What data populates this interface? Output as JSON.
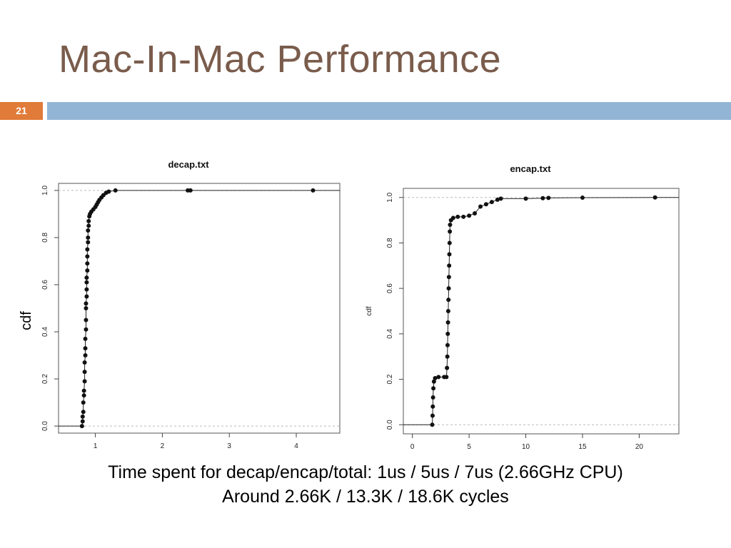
{
  "slide": {
    "title": "Mac-In-Mac Performance",
    "number": "21",
    "caption_line1": "Time spent for decap/encap/total: 1us / 5us / 7us (2.66GHz CPU)",
    "caption_line2": "Around 2.66K / 13.3K / 18.6K cycles",
    "side_ylabel": "cdf"
  },
  "colors": {
    "title": "#7a5c4c",
    "accent_orange": "#e07b39",
    "accent_blue": "#93b5d5"
  },
  "chart_data": [
    {
      "type": "scatter",
      "title": "decap.txt",
      "xlabel": "",
      "ylabel": "",
      "xlim": [
        0.45,
        4.65
      ],
      "ylim": [
        -0.03,
        1.03
      ],
      "xticks": [
        1,
        2,
        3,
        4
      ],
      "yticks": [
        0.0,
        0.2,
        0.4,
        0.6,
        0.8,
        1.0
      ],
      "grid": false,
      "series": [
        {
          "points": [
            [
              0.8,
              0.0
            ],
            [
              0.81,
              0.02
            ],
            [
              0.81,
              0.04
            ],
            [
              0.82,
              0.06
            ],
            [
              0.82,
              0.1
            ],
            [
              0.83,
              0.13
            ],
            [
              0.83,
              0.15
            ],
            [
              0.84,
              0.19
            ],
            [
              0.84,
              0.23
            ],
            [
              0.84,
              0.27
            ],
            [
              0.85,
              0.3
            ],
            [
              0.85,
              0.33
            ],
            [
              0.85,
              0.37
            ],
            [
              0.86,
              0.41
            ],
            [
              0.86,
              0.45
            ],
            [
              0.86,
              0.5
            ],
            [
              0.86,
              0.52
            ],
            [
              0.87,
              0.55
            ],
            [
              0.87,
              0.58
            ],
            [
              0.87,
              0.61
            ],
            [
              0.87,
              0.63
            ],
            [
              0.88,
              0.66
            ],
            [
              0.88,
              0.69
            ],
            [
              0.88,
              0.72
            ],
            [
              0.88,
              0.75
            ],
            [
              0.89,
              0.78
            ],
            [
              0.89,
              0.8
            ],
            [
              0.89,
              0.83
            ],
            [
              0.9,
              0.85
            ],
            [
              0.9,
              0.87
            ],
            [
              0.91,
              0.89
            ],
            [
              0.92,
              0.9
            ],
            [
              0.94,
              0.91
            ],
            [
              0.97,
              0.92
            ],
            [
              1.0,
              0.93
            ],
            [
              1.02,
              0.94
            ],
            [
              1.04,
              0.95
            ],
            [
              1.06,
              0.96
            ],
            [
              1.09,
              0.97
            ],
            [
              1.12,
              0.98
            ],
            [
              1.16,
              0.99
            ],
            [
              1.2,
              0.995
            ],
            [
              1.3,
              1.0
            ],
            [
              2.38,
              1.0
            ],
            [
              2.42,
              1.0
            ],
            [
              4.25,
              1.0
            ]
          ]
        }
      ]
    },
    {
      "type": "scatter",
      "title": "encap.txt",
      "xlabel": "",
      "ylabel": "cdf",
      "xlim": [
        -0.8,
        23.5
      ],
      "ylim": [
        -0.04,
        1.04
      ],
      "xticks": [
        0,
        5,
        10,
        15,
        20
      ],
      "yticks": [
        0.0,
        0.2,
        0.4,
        0.6,
        0.8,
        1.0
      ],
      "grid": false,
      "series": [
        {
          "points": [
            [
              1.75,
              0.0
            ],
            [
              1.78,
              0.04
            ],
            [
              1.8,
              0.08
            ],
            [
              1.82,
              0.12
            ],
            [
              1.85,
              0.16
            ],
            [
              1.9,
              0.19
            ],
            [
              2.0,
              0.205
            ],
            [
              2.3,
              0.21
            ],
            [
              2.8,
              0.21
            ],
            [
              3.0,
              0.21
            ],
            [
              3.05,
              0.25
            ],
            [
              3.08,
              0.3
            ],
            [
              3.1,
              0.35
            ],
            [
              3.12,
              0.4
            ],
            [
              3.14,
              0.45
            ],
            [
              3.16,
              0.5
            ],
            [
              3.18,
              0.55
            ],
            [
              3.2,
              0.6
            ],
            [
              3.22,
              0.65
            ],
            [
              3.24,
              0.7
            ],
            [
              3.26,
              0.75
            ],
            [
              3.28,
              0.8
            ],
            [
              3.3,
              0.85
            ],
            [
              3.32,
              0.88
            ],
            [
              3.4,
              0.9
            ],
            [
              3.6,
              0.91
            ],
            [
              4.0,
              0.915
            ],
            [
              4.5,
              0.915
            ],
            [
              5.0,
              0.92
            ],
            [
              5.5,
              0.93
            ],
            [
              6.0,
              0.96
            ],
            [
              6.5,
              0.97
            ],
            [
              7.0,
              0.98
            ],
            [
              7.5,
              0.99
            ],
            [
              7.8,
              0.995
            ],
            [
              10.0,
              0.995
            ],
            [
              11.5,
              0.997
            ],
            [
              12.0,
              0.998
            ],
            [
              15.0,
              0.999
            ],
            [
              21.4,
              1.0
            ]
          ]
        }
      ]
    }
  ]
}
